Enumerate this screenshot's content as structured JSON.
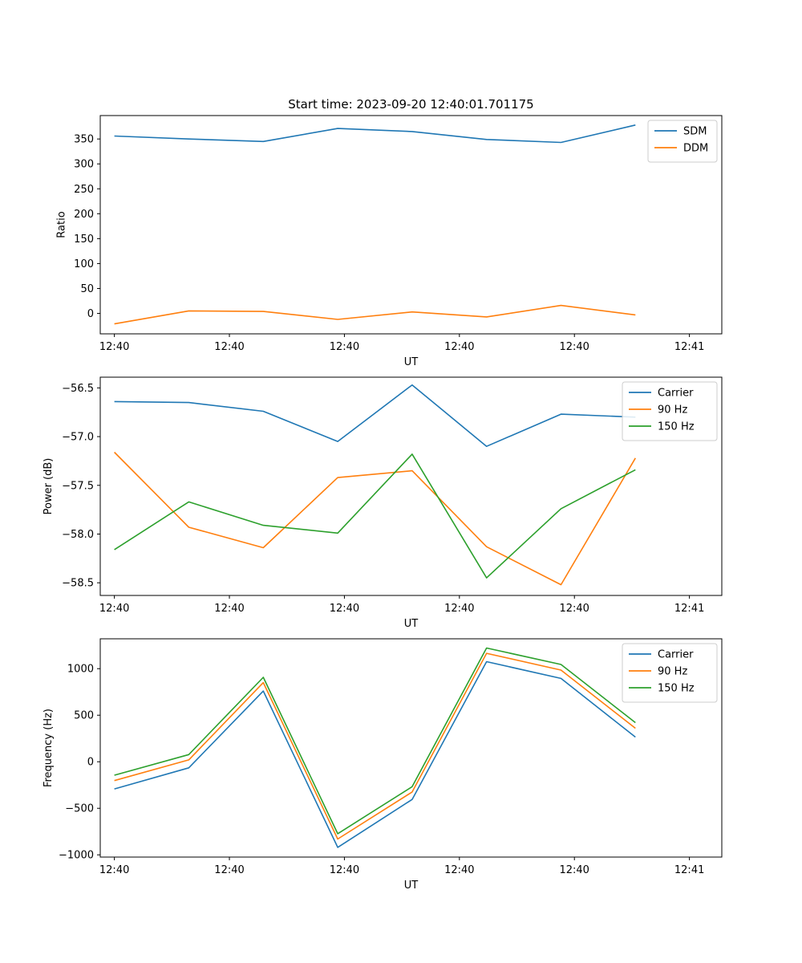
{
  "figure": {
    "title": "Start time: 2023-09-20 12:40:01.701175"
  },
  "colors": {
    "blue": "#1f77b4",
    "orange": "#ff7f0e",
    "green": "#2ca02c"
  },
  "chart_data": [
    {
      "type": "line",
      "xlabel": "UT",
      "ylabel": "Ratio",
      "x": [
        1,
        2,
        3,
        4,
        5,
        6,
        7,
        8
      ],
      "xlim": [
        0.81,
        9.16
      ],
      "xticks": [
        {
          "pos": 1.0,
          "label": "12:40"
        },
        {
          "pos": 2.545,
          "label": "12:40"
        },
        {
          "pos": 4.09,
          "label": "12:40"
        },
        {
          "pos": 5.635,
          "label": "12:40"
        },
        {
          "pos": 7.18,
          "label": "12:40"
        },
        {
          "pos": 8.725,
          "label": "12:41"
        }
      ],
      "ylim": [
        -41,
        397
      ],
      "yticks": [
        0,
        50,
        100,
        150,
        200,
        250,
        300,
        350
      ],
      "legend": "top-right",
      "series": [
        {
          "name": "SDM",
          "color": "blue",
          "values": [
            356,
            350,
            345,
            371,
            365,
            349,
            343,
            378
          ]
        },
        {
          "name": "DDM",
          "color": "orange",
          "values": [
            -21,
            5,
            4,
            -12,
            3,
            -7,
            16,
            -3
          ]
        }
      ]
    },
    {
      "type": "line",
      "xlabel": "UT",
      "ylabel": "Power (dB)",
      "x": [
        1,
        2,
        3,
        4,
        5,
        6,
        7,
        8
      ],
      "xlim": [
        0.81,
        9.16
      ],
      "xticks": [
        {
          "pos": 1.0,
          "label": "12:40"
        },
        {
          "pos": 2.545,
          "label": "12:40"
        },
        {
          "pos": 4.09,
          "label": "12:40"
        },
        {
          "pos": 5.635,
          "label": "12:40"
        },
        {
          "pos": 7.18,
          "label": "12:40"
        },
        {
          "pos": 8.725,
          "label": "12:41"
        }
      ],
      "ylim": [
        -58.63,
        -56.39
      ],
      "yticks": [
        -58.5,
        -58.0,
        -57.5,
        -57.0,
        -56.5
      ],
      "yticklabels": [
        "−58.5",
        "−58.0",
        "−57.5",
        "−57.0",
        "−56.5"
      ],
      "legend": "top-right",
      "series": [
        {
          "name": "Carrier",
          "color": "blue",
          "values": [
            -56.64,
            -56.65,
            -56.74,
            -57.05,
            -56.47,
            -57.1,
            -56.77,
            -56.8
          ]
        },
        {
          "name": "90 Hz",
          "color": "orange",
          "values": [
            -57.16,
            -57.93,
            -58.14,
            -57.42,
            -57.35,
            -58.13,
            -58.52,
            -57.22
          ]
        },
        {
          "name": "150 Hz",
          "color": "green",
          "values": [
            -58.16,
            -57.67,
            -57.91,
            -57.99,
            -57.18,
            -58.45,
            -57.74,
            -57.34
          ]
        }
      ]
    },
    {
      "type": "line",
      "xlabel": "UT",
      "ylabel": "Frequency (Hz)",
      "x": [
        1,
        2,
        3,
        4,
        5,
        6,
        7,
        8
      ],
      "xlim": [
        0.81,
        9.16
      ],
      "xticks": [
        {
          "pos": 1.0,
          "label": "12:40"
        },
        {
          "pos": 2.545,
          "label": "12:40"
        },
        {
          "pos": 4.09,
          "label": "12:40"
        },
        {
          "pos": 5.635,
          "label": "12:40"
        },
        {
          "pos": 7.18,
          "label": "12:40"
        },
        {
          "pos": 8.725,
          "label": "12:41"
        }
      ],
      "ylim": [
        -1024,
        1321
      ],
      "yticks": [
        -1000,
        -500,
        0,
        500,
        1000
      ],
      "yticklabels": [
        "−1000",
        "−500",
        "0",
        "500",
        "1000"
      ],
      "legend": "top-right",
      "series": [
        {
          "name": "Carrier",
          "color": "blue",
          "values": [
            -292,
            -65,
            760,
            -920,
            -405,
            1075,
            895,
            265
          ]
        },
        {
          "name": "90 Hz",
          "color": "orange",
          "values": [
            -202,
            20,
            850,
            -830,
            -325,
            1165,
            985,
            360
          ]
        },
        {
          "name": "150 Hz",
          "color": "green",
          "values": [
            -145,
            77,
            907,
            -773,
            -268,
            1222,
            1045,
            420
          ]
        }
      ]
    }
  ]
}
